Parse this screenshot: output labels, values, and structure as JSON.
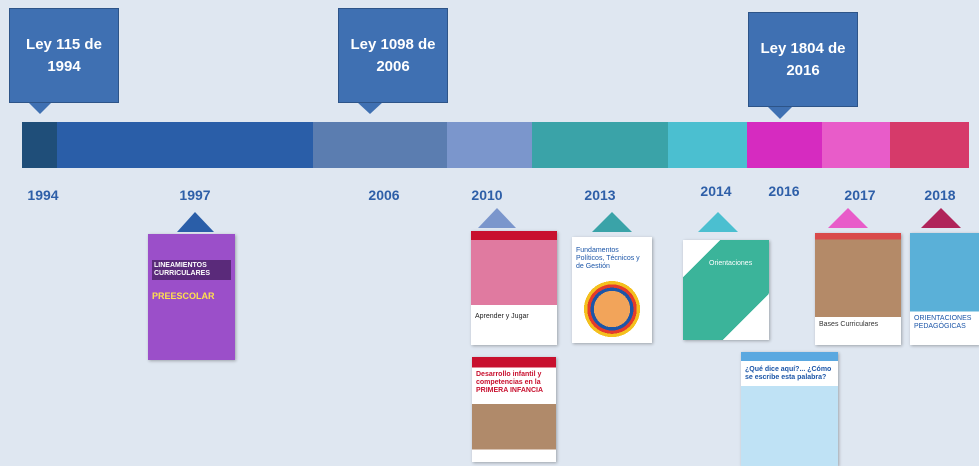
{
  "callouts": [
    {
      "label": "Ley 115 de 1994"
    },
    {
      "label": "Ley 1098 de 2006"
    },
    {
      "label": "Ley 1804 de 2016"
    }
  ],
  "years": [
    "1994",
    "1997",
    "2006",
    "2010",
    "2013",
    "2014",
    "2016",
    "2017",
    "2018"
  ],
  "covers": [
    {
      "title": "LINEAMIENTOS CURRICULARES",
      "subtitle": "PREESCOLAR"
    },
    {
      "title": "Aprender y Jugar"
    },
    {
      "title": "Desarrollo infantil y competencias en la PRIMERA INFANCIA"
    },
    {
      "title": "Fundamentos Políticos, Técnicos y de Gestión"
    },
    {
      "title": "Orientaciones"
    },
    {
      "title": "¿Qué dice aquí?... ¿Cómo se escribe esta palabra?"
    },
    {
      "title": "Bases Curriculares"
    },
    {
      "title": "ORIENTACIONES PEDAGÓGICAS"
    }
  ]
}
